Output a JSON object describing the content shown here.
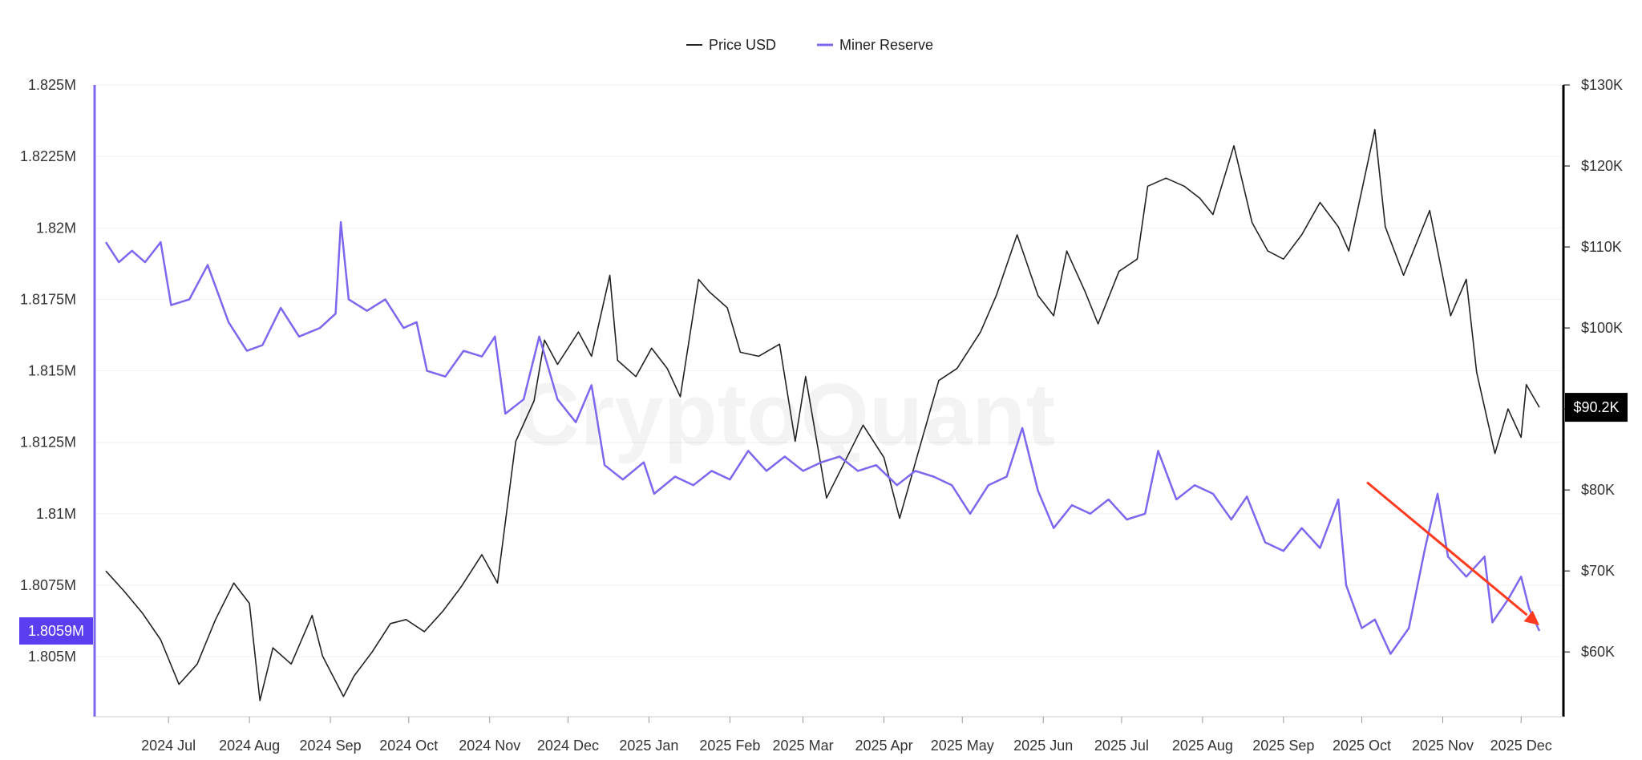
{
  "chart_data": {
    "type": "line",
    "watermark": "CryptoQuant",
    "legend": {
      "placement": "top-center",
      "items": [
        {
          "name": "Price USD",
          "color": "#222222"
        },
        {
          "name": "Miner Reserve",
          "color": "#7b68ee"
        }
      ]
    },
    "x_ticks": [
      "2024 Jul",
      "2024 Aug",
      "2024 Sep",
      "2024 Oct",
      "2024 Nov",
      "2024 Dec",
      "2025 Jan",
      "2025 Feb",
      "2025 Mar",
      "2025 Apr",
      "2025 May",
      "2025 Jun",
      "2025 Jul",
      "2025 Aug",
      "2025 Sep",
      "2025 Oct",
      "2025 Nov",
      "2025 Dec"
    ],
    "x_range": [
      "2024-06-07",
      "2025-12-08"
    ],
    "y_left": {
      "ticks": [
        "1.825M",
        "1.8225M",
        "1.82M",
        "1.8175M",
        "1.815M",
        "1.8125M",
        "1.81M",
        "1.8075M",
        "1.805M"
      ],
      "tick_values": [
        1.825,
        1.8225,
        1.82,
        1.8175,
        1.815,
        1.8125,
        1.81,
        1.8075,
        1.805
      ],
      "range": [
        1.8029,
        1.825
      ],
      "unit": "M",
      "axis_color": "#7b68ee",
      "current_label": "1.8059M",
      "current_value": 1.8059
    },
    "y_right": {
      "ticks": [
        "$130K",
        "$120K",
        "$110K",
        "$100K",
        "$90K",
        "$80K",
        "$70K",
        "$60K"
      ],
      "tick_values": [
        130000,
        120000,
        110000,
        100000,
        90000,
        80000,
        70000,
        60000
      ],
      "range": [
        52000,
        130000
      ],
      "axis_color": "#000000",
      "current_label": "$90.2K",
      "current_value": 90200
    },
    "series": [
      {
        "name": "Price USD",
        "color": "#222222",
        "axis": "right",
        "points": [
          [
            "2024-06-07",
            70000
          ],
          [
            "2024-06-14",
            67500
          ],
          [
            "2024-06-21",
            64800
          ],
          [
            "2024-06-28",
            61500
          ],
          [
            "2024-07-05",
            56000
          ],
          [
            "2024-07-12",
            58500
          ],
          [
            "2024-07-19",
            64000
          ],
          [
            "2024-07-26",
            68500
          ],
          [
            "2024-08-01",
            66000
          ],
          [
            "2024-08-05",
            54000
          ],
          [
            "2024-08-10",
            60500
          ],
          [
            "2024-08-17",
            58500
          ],
          [
            "2024-08-25",
            64500
          ],
          [
            "2024-08-29",
            59500
          ],
          [
            "2024-09-06",
            54500
          ],
          [
            "2024-09-10",
            57000
          ],
          [
            "2024-09-17",
            60000
          ],
          [
            "2024-09-24",
            63500
          ],
          [
            "2024-09-30",
            64000
          ],
          [
            "2024-10-07",
            62500
          ],
          [
            "2024-10-14",
            65000
          ],
          [
            "2024-10-21",
            68000
          ],
          [
            "2024-10-29",
            72000
          ],
          [
            "2024-11-04",
            68500
          ],
          [
            "2024-11-11",
            86000
          ],
          [
            "2024-11-18",
            91000
          ],
          [
            "2024-11-22",
            98500
          ],
          [
            "2024-11-27",
            95500
          ],
          [
            "2024-12-05",
            99500
          ],
          [
            "2024-12-10",
            96500
          ],
          [
            "2024-12-17",
            106500
          ],
          [
            "2024-12-20",
            96000
          ],
          [
            "2024-12-27",
            94000
          ],
          [
            "2025-01-02",
            97500
          ],
          [
            "2025-01-08",
            95000
          ],
          [
            "2025-01-13",
            91500
          ],
          [
            "2025-01-20",
            106000
          ],
          [
            "2025-01-24",
            104500
          ],
          [
            "2025-01-31",
            102500
          ],
          [
            "2025-02-05",
            97000
          ],
          [
            "2025-02-12",
            96500
          ],
          [
            "2025-02-20",
            98000
          ],
          [
            "2025-02-26",
            86000
          ],
          [
            "2025-03-02",
            94000
          ],
          [
            "2025-03-10",
            79000
          ],
          [
            "2025-03-17",
            83500
          ],
          [
            "2025-03-24",
            88000
          ],
          [
            "2025-04-01",
            84000
          ],
          [
            "2025-04-07",
            76500
          ],
          [
            "2025-04-14",
            84500
          ],
          [
            "2025-04-22",
            93500
          ],
          [
            "2025-04-29",
            95000
          ],
          [
            "2025-05-08",
            99500
          ],
          [
            "2025-05-14",
            104000
          ],
          [
            "2025-05-22",
            111500
          ],
          [
            "2025-05-30",
            104000
          ],
          [
            "2025-06-05",
            101500
          ],
          [
            "2025-06-10",
            109500
          ],
          [
            "2025-06-17",
            104500
          ],
          [
            "2025-06-22",
            100500
          ],
          [
            "2025-06-30",
            107000
          ],
          [
            "2025-07-07",
            108500
          ],
          [
            "2025-07-11",
            117500
          ],
          [
            "2025-07-18",
            118500
          ],
          [
            "2025-07-25",
            117500
          ],
          [
            "2025-07-31",
            116000
          ],
          [
            "2025-08-05",
            114000
          ],
          [
            "2025-08-13",
            122500
          ],
          [
            "2025-08-20",
            113000
          ],
          [
            "2025-08-26",
            109500
          ],
          [
            "2025-09-01",
            108500
          ],
          [
            "2025-09-08",
            111500
          ],
          [
            "2025-09-15",
            115500
          ],
          [
            "2025-09-22",
            112500
          ],
          [
            "2025-09-26",
            109500
          ],
          [
            "2025-10-02",
            118500
          ],
          [
            "2025-10-06",
            124500
          ],
          [
            "2025-10-10",
            112500
          ],
          [
            "2025-10-17",
            106500
          ],
          [
            "2025-10-27",
            114500
          ],
          [
            "2025-11-04",
            101500
          ],
          [
            "2025-11-10",
            106000
          ],
          [
            "2025-11-14",
            94500
          ],
          [
            "2025-11-21",
            84500
          ],
          [
            "2025-11-26",
            90000
          ],
          [
            "2025-12-01",
            86500
          ],
          [
            "2025-12-03",
            93000
          ],
          [
            "2025-12-08",
            90200
          ]
        ]
      },
      {
        "name": "Miner Reserve",
        "color": "#7b68ee",
        "axis": "left",
        "points": [
          [
            "2024-06-07",
            1.8195
          ],
          [
            "2024-06-12",
            1.8188
          ],
          [
            "2024-06-17",
            1.8192
          ],
          [
            "2024-06-22",
            1.8188
          ],
          [
            "2024-06-28",
            1.8195
          ],
          [
            "2024-07-02",
            1.8173
          ],
          [
            "2024-07-09",
            1.8175
          ],
          [
            "2024-07-16",
            1.8187
          ],
          [
            "2024-07-24",
            1.8167
          ],
          [
            "2024-07-31",
            1.8157
          ],
          [
            "2024-08-06",
            1.8159
          ],
          [
            "2024-08-13",
            1.8172
          ],
          [
            "2024-08-20",
            1.8162
          ],
          [
            "2024-08-28",
            1.8165
          ],
          [
            "2024-09-03",
            1.817
          ],
          [
            "2024-09-05",
            1.8202
          ],
          [
            "2024-09-08",
            1.8175
          ],
          [
            "2024-09-15",
            1.8171
          ],
          [
            "2024-09-22",
            1.8175
          ],
          [
            "2024-09-29",
            1.8165
          ],
          [
            "2024-10-04",
            1.8167
          ],
          [
            "2024-10-08",
            1.815
          ],
          [
            "2024-10-15",
            1.8148
          ],
          [
            "2024-10-22",
            1.8157
          ],
          [
            "2024-10-29",
            1.8155
          ],
          [
            "2024-11-03",
            1.8162
          ],
          [
            "2024-11-07",
            1.8135
          ],
          [
            "2024-11-14",
            1.814
          ],
          [
            "2024-11-20",
            1.8162
          ],
          [
            "2024-11-27",
            1.814
          ],
          [
            "2024-12-04",
            1.8132
          ],
          [
            "2024-12-10",
            1.8145
          ],
          [
            "2024-12-15",
            1.8117
          ],
          [
            "2024-12-22",
            1.8112
          ],
          [
            "2024-12-30",
            1.8118
          ],
          [
            "2025-01-03",
            1.8107
          ],
          [
            "2025-01-11",
            1.8113
          ],
          [
            "2025-01-18",
            1.811
          ],
          [
            "2025-01-25",
            1.8115
          ],
          [
            "2025-02-01",
            1.8112
          ],
          [
            "2025-02-08",
            1.8122
          ],
          [
            "2025-02-15",
            1.8115
          ],
          [
            "2025-02-22",
            1.812
          ],
          [
            "2025-03-01",
            1.8115
          ],
          [
            "2025-03-08",
            1.8118
          ],
          [
            "2025-03-15",
            1.812
          ],
          [
            "2025-03-22",
            1.8115
          ],
          [
            "2025-03-29",
            1.8117
          ],
          [
            "2025-04-06",
            1.811
          ],
          [
            "2025-04-13",
            1.8115
          ],
          [
            "2025-04-20",
            1.8113
          ],
          [
            "2025-04-27",
            1.811
          ],
          [
            "2025-05-04",
            1.81
          ],
          [
            "2025-05-11",
            1.811
          ],
          [
            "2025-05-18",
            1.8113
          ],
          [
            "2025-05-24",
            1.813
          ],
          [
            "2025-05-30",
            1.8108
          ],
          [
            "2025-06-05",
            1.8095
          ],
          [
            "2025-06-12",
            1.8103
          ],
          [
            "2025-06-19",
            1.81
          ],
          [
            "2025-06-26",
            1.8105
          ],
          [
            "2025-07-03",
            1.8098
          ],
          [
            "2025-07-10",
            1.81
          ],
          [
            "2025-07-15",
            1.8122
          ],
          [
            "2025-07-22",
            1.8105
          ],
          [
            "2025-07-29",
            1.811
          ],
          [
            "2025-08-05",
            1.8107
          ],
          [
            "2025-08-12",
            1.8098
          ],
          [
            "2025-08-18",
            1.8106
          ],
          [
            "2025-08-25",
            1.809
          ],
          [
            "2025-09-01",
            1.8087
          ],
          [
            "2025-09-08",
            1.8095
          ],
          [
            "2025-09-15",
            1.8088
          ],
          [
            "2025-09-22",
            1.8105
          ],
          [
            "2025-09-25",
            1.8075
          ],
          [
            "2025-10-01",
            1.806
          ],
          [
            "2025-10-06",
            1.8063
          ],
          [
            "2025-10-12",
            1.8051
          ],
          [
            "2025-10-19",
            1.806
          ],
          [
            "2025-10-25",
            1.8087
          ],
          [
            "2025-10-30",
            1.8107
          ],
          [
            "2025-11-03",
            1.8085
          ],
          [
            "2025-11-10",
            1.8078
          ],
          [
            "2025-11-17",
            1.8085
          ],
          [
            "2025-11-20",
            1.8062
          ],
          [
            "2025-11-26",
            1.807
          ],
          [
            "2025-12-01",
            1.8078
          ],
          [
            "2025-12-04",
            1.8067
          ],
          [
            "2025-12-08",
            1.8059
          ]
        ]
      }
    ],
    "annotation": {
      "type": "arrow",
      "color": "#ff3b1f",
      "from": [
        "2025-10-03",
        1.8111
      ],
      "to": [
        "2025-12-08",
        1.8061
      ]
    }
  }
}
